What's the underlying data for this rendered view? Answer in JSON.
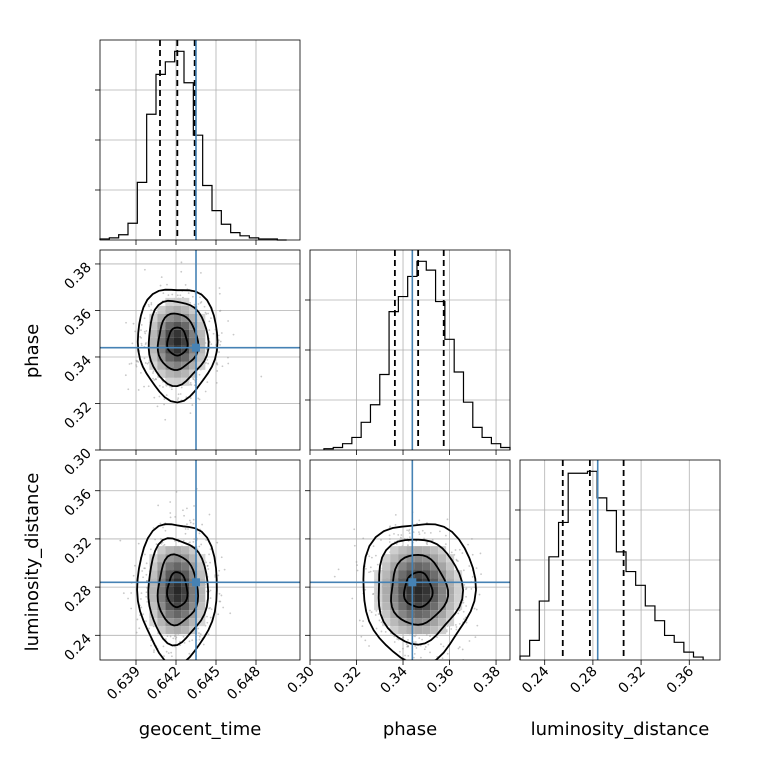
{
  "chart_data": {
    "type": "corner",
    "parameters": [
      "geocent_time",
      "phase",
      "luminosity_distance"
    ],
    "truths": {
      "geocent_time": 0.6435,
      "phase": 0.344,
      "luminosity_distance": 0.284
    },
    "colors": {
      "truth": "#4682b4",
      "line": "#000000",
      "grid": "#b0b0b0",
      "points": "#9a9a9a"
    },
    "grid": true,
    "axes": [
      {
        "name": "geocent_time",
        "range": [
          0.6363,
          0.6513
        ],
        "ticks": [
          0.639,
          0.642,
          0.645,
          0.648
        ],
        "tick_labels": [
          "0.639",
          "0.642",
          "0.645",
          "0.648"
        ],
        "quantiles": [
          0.6408,
          0.6421,
          0.6434
        ],
        "histogram": {
          "bins": [
            0.6363,
            0.637,
            0.6377,
            0.6384,
            0.6391,
            0.6398,
            0.6405,
            0.6412,
            0.6419,
            0.6426,
            0.6433,
            0.644,
            0.6447,
            0.6454,
            0.6461,
            0.6468,
            0.6475,
            0.6482,
            0.6489,
            0.6496,
            0.6503
          ],
          "counts": [
            1,
            2,
            5,
            16,
            55,
            120,
            158,
            170,
            180,
            150,
            100,
            52,
            28,
            15,
            7,
            4,
            2,
            1,
            1,
            0
          ]
        }
      },
      {
        "name": "phase",
        "range": [
          0.3,
          0.386
        ],
        "ticks": [
          0.3,
          0.32,
          0.34,
          0.36,
          0.38
        ],
        "tick_labels": [
          "0.30",
          "0.32",
          "0.34",
          "0.36",
          "0.38"
        ],
        "quantiles": [
          0.3365,
          0.3465,
          0.3575
        ],
        "histogram": {
          "bins": [
            0.306,
            0.31,
            0.314,
            0.318,
            0.322,
            0.326,
            0.33,
            0.334,
            0.338,
            0.342,
            0.346,
            0.35,
            0.354,
            0.358,
            0.362,
            0.366,
            0.37,
            0.374,
            0.378,
            0.382,
            0.386
          ],
          "counts": [
            1,
            2,
            5,
            10,
            22,
            36,
            60,
            110,
            122,
            138,
            150,
            143,
            118,
            88,
            62,
            38,
            18,
            10,
            5,
            2
          ]
        }
      },
      {
        "name": "luminosity_distance",
        "range": [
          0.2195,
          0.3855
        ],
        "ticks": [
          0.24,
          0.28,
          0.32,
          0.36
        ],
        "tick_labels": [
          "0.24",
          "0.28",
          "0.32",
          "0.36"
        ],
        "quantiles": [
          0.255,
          0.2775,
          0.3055
        ],
        "histogram": {
          "bins": [
            0.2195,
            0.2275,
            0.2355,
            0.2435,
            0.2515,
            0.2595,
            0.2675,
            0.2755,
            0.2835,
            0.2915,
            0.2995,
            0.3075,
            0.3155,
            0.3235,
            0.3315,
            0.3395,
            0.3475,
            0.3555,
            0.3635,
            0.3715
          ],
          "counts": [
            4,
            20,
            60,
            105,
            140,
            190,
            190,
            192,
            165,
            152,
            110,
            90,
            76,
            55,
            40,
            25,
            18,
            8,
            3
          ]
        }
      }
    ],
    "axis_labels": {
      "row_1": "phase",
      "row_2": "luminosity_distance",
      "x_0": "geocent_time",
      "x_1": "phase",
      "x_2": "luminosity_distance"
    }
  }
}
